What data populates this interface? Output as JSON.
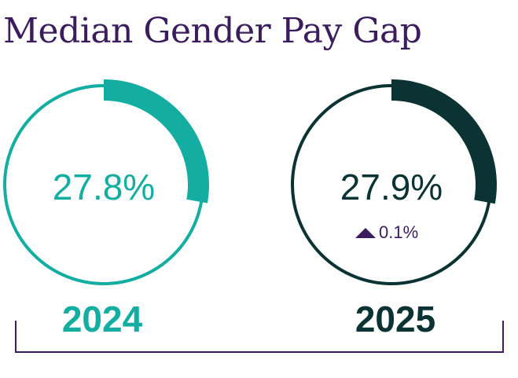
{
  "chart_data": {
    "type": "pie",
    "title": "Median Gender Pay Gap",
    "series": [
      {
        "name": "2024",
        "value": 27.8,
        "label": "27.8%",
        "year_label": "2024",
        "color": "#13ada2",
        "delta": ""
      },
      {
        "name": "2025",
        "value": 27.9,
        "label": "27.9%",
        "year_label": "2025",
        "color": "#0b3333",
        "delta": "0.1%",
        "delta_direction": "up",
        "delta_color": "#3b1d5e"
      }
    ]
  },
  "colors": {
    "title": "#3b1d5e",
    "bracket": "#3b1d5e"
  }
}
